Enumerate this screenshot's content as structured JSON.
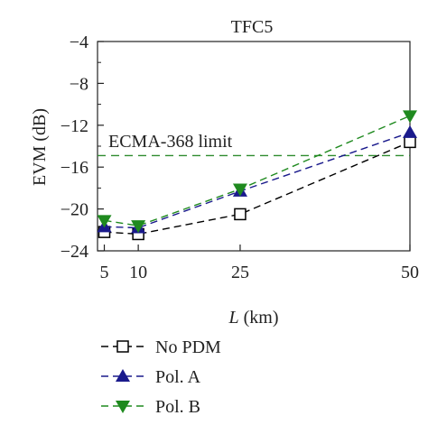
{
  "chart_data": {
    "type": "line",
    "title": "TFC5",
    "xlabel_italic": "L",
    "xlabel_unit": " (km)",
    "ylabel": "EVM (dB)",
    "x": [
      5,
      10,
      25,
      50
    ],
    "x_ticks": [
      "5",
      "10",
      "25",
      "50"
    ],
    "y_ticks": [
      "−4",
      "−8",
      "−12",
      "−16",
      "−20",
      "−24"
    ],
    "y_tick_values": [
      -4,
      -8,
      -12,
      -16,
      -20,
      -24
    ],
    "xlim": [
      4,
      50
    ],
    "ylim": [
      -24,
      -4
    ],
    "series": [
      {
        "name": "No PDM",
        "values": [
          -22.2,
          -22.4,
          -20.5,
          -13.6
        ],
        "color": "#000000",
        "marker": "square"
      },
      {
        "name": "Pol. A",
        "values": [
          -21.7,
          -21.8,
          -18.3,
          -12.7
        ],
        "color": "#1a1a8c",
        "marker": "triangle-up"
      },
      {
        "name": "Pol. B",
        "values": [
          -21.1,
          -21.6,
          -18.1,
          -11.1
        ],
        "color": "#1f8a1f",
        "marker": "triangle-down"
      }
    ],
    "reference_line": {
      "label": "ECMA-368 limit",
      "value": -14.9,
      "color": "#2e8b2e"
    },
    "legend_position": "bottom"
  }
}
